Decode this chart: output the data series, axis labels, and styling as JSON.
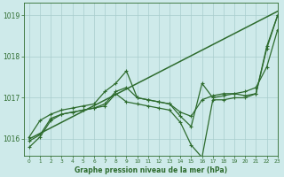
{
  "title": "Graphe pression niveau de la mer (hPa)",
  "bg_color": "#ceeaea",
  "grid_color": "#a8cccc",
  "line_color": "#2d6b2d",
  "xlim": [
    -0.5,
    23
  ],
  "ylim": [
    1015.6,
    1019.3
  ],
  "yticks": [
    1016,
    1017,
    1018,
    1019
  ],
  "xticks": [
    0,
    1,
    2,
    3,
    4,
    5,
    6,
    7,
    8,
    9,
    10,
    11,
    12,
    13,
    14,
    15,
    16,
    17,
    18,
    19,
    20,
    21,
    22,
    23
  ],
  "trend_x": [
    0,
    23
  ],
  "trend_y": [
    1016.0,
    1019.1
  ],
  "line1_x": [
    0,
    1,
    2,
    3,
    4,
    5,
    6,
    7,
    8,
    9,
    10,
    11,
    12,
    13,
    14,
    15,
    16,
    17,
    18,
    19,
    20,
    21,
    22,
    23
  ],
  "line1_y": [
    1016.05,
    1016.45,
    1016.6,
    1016.7,
    1016.75,
    1016.8,
    1016.85,
    1017.15,
    1017.35,
    1017.65,
    1017.0,
    1016.95,
    1016.9,
    1016.85,
    1016.65,
    1016.55,
    1016.95,
    1017.05,
    1017.1,
    1017.1,
    1017.15,
    1017.25,
    1017.75,
    1018.65
  ],
  "line2_x": [
    0,
    1,
    2,
    3,
    4,
    5,
    6,
    7,
    8,
    9,
    10,
    11,
    12,
    13,
    14,
    15,
    16,
    17,
    18,
    19,
    20,
    21,
    22,
    23
  ],
  "line2_y": [
    1015.95,
    1016.1,
    1016.5,
    1016.6,
    1016.65,
    1016.7,
    1016.75,
    1016.85,
    1017.15,
    1017.25,
    1017.0,
    1016.95,
    1016.9,
    1016.85,
    1016.55,
    1016.3,
    1017.35,
    1017.0,
    1017.05,
    1017.1,
    1017.05,
    1017.1,
    1018.25,
    1019.0
  ],
  "line3_x": [
    0,
    1,
    2,
    3,
    4,
    5,
    6,
    7,
    8,
    9,
    10,
    11,
    12,
    13,
    14,
    15,
    16,
    17,
    18,
    19,
    20,
    21,
    22,
    23
  ],
  "line3_y": [
    1015.8,
    1016.05,
    1016.45,
    1016.6,
    1016.65,
    1016.7,
    1016.75,
    1016.8,
    1017.1,
    1016.9,
    1016.85,
    1016.8,
    1016.75,
    1016.7,
    1016.4,
    1015.85,
    1015.55,
    1016.95,
    1016.95,
    1017.0,
    1017.0,
    1017.1,
    1018.2,
    1019.0
  ],
  "linewidth": 0.9,
  "trend_linewidth": 1.1
}
